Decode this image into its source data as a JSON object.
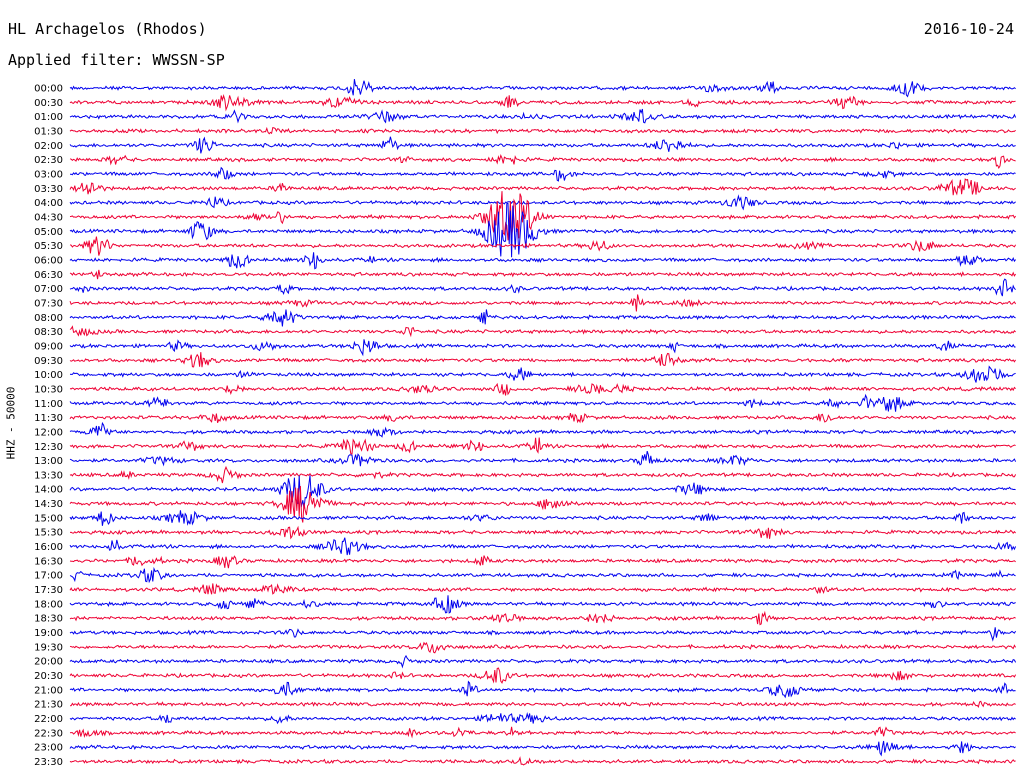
{
  "header": {
    "station": "HL Archagelos (Rhodos)",
    "date": "2016-10-24",
    "filter_label": "Applied filter: WWSSN-SP"
  },
  "chart_data": {
    "type": "line",
    "title": "HL Archagelos (Rhodos)",
    "ylabel": "HHZ - 50000",
    "trace_rows": [
      "00:00",
      "00:30",
      "01:00",
      "01:30",
      "02:00",
      "02:30",
      "03:00",
      "03:30",
      "04:00",
      "04:30",
      "05:00",
      "05:30",
      "06:00",
      "06:30",
      "07:00",
      "07:30",
      "08:00",
      "08:30",
      "09:00",
      "09:30",
      "10:00",
      "10:30",
      "11:00",
      "11:30",
      "12:00",
      "12:30",
      "13:00",
      "13:30",
      "14:00",
      "14:30",
      "15:00",
      "15:30",
      "16:00",
      "16:30",
      "17:00",
      "17:30",
      "18:00",
      "18:30",
      "19:00",
      "19:30",
      "20:00",
      "20:30",
      "21:00",
      "21:30",
      "22:00",
      "22:30",
      "23:00",
      "23:30"
    ],
    "series_colors": [
      "#0000ee",
      "#ee0033"
    ]
  }
}
